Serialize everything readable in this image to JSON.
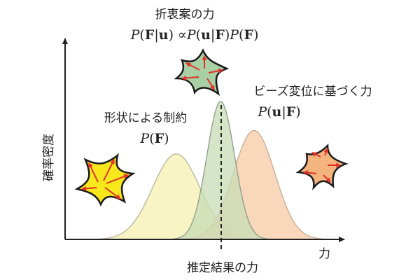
{
  "labels": {
    "compromise_title": "折衷案の力",
    "compromise_formula": "P(F|u) ∝P(u|F)P(F)",
    "shape_title": "形状による制約",
    "shape_formula": "P(F)",
    "bead_title": "ビーズ変位に基づく力",
    "bead_formula": "P(u|F)",
    "y_axis": "確率密度",
    "x_axis": "力",
    "estimate": "推定結果の力"
  },
  "curves": [
    {
      "name": "shape",
      "mean": 0.4,
      "sd": 0.085,
      "peak": 0.62,
      "fill": "#f6f0b0",
      "stroke": "#b8b39a"
    },
    {
      "name": "bead",
      "mean": 0.68,
      "sd": 0.075,
      "peak": 0.79,
      "fill": "#f6c9a3",
      "stroke": "#c9a993"
    },
    {
      "name": "compromise",
      "mean": 0.56,
      "sd": 0.05,
      "peak": 1.0,
      "fill": "#c8dcb6",
      "stroke": "#8e9a88"
    }
  ],
  "colors": {
    "shape_cell": "#f7e71b",
    "compromise_cell": "#a8d0a4",
    "bead_cell": "#f3b47e",
    "arrow": "#e0322a"
  }
}
